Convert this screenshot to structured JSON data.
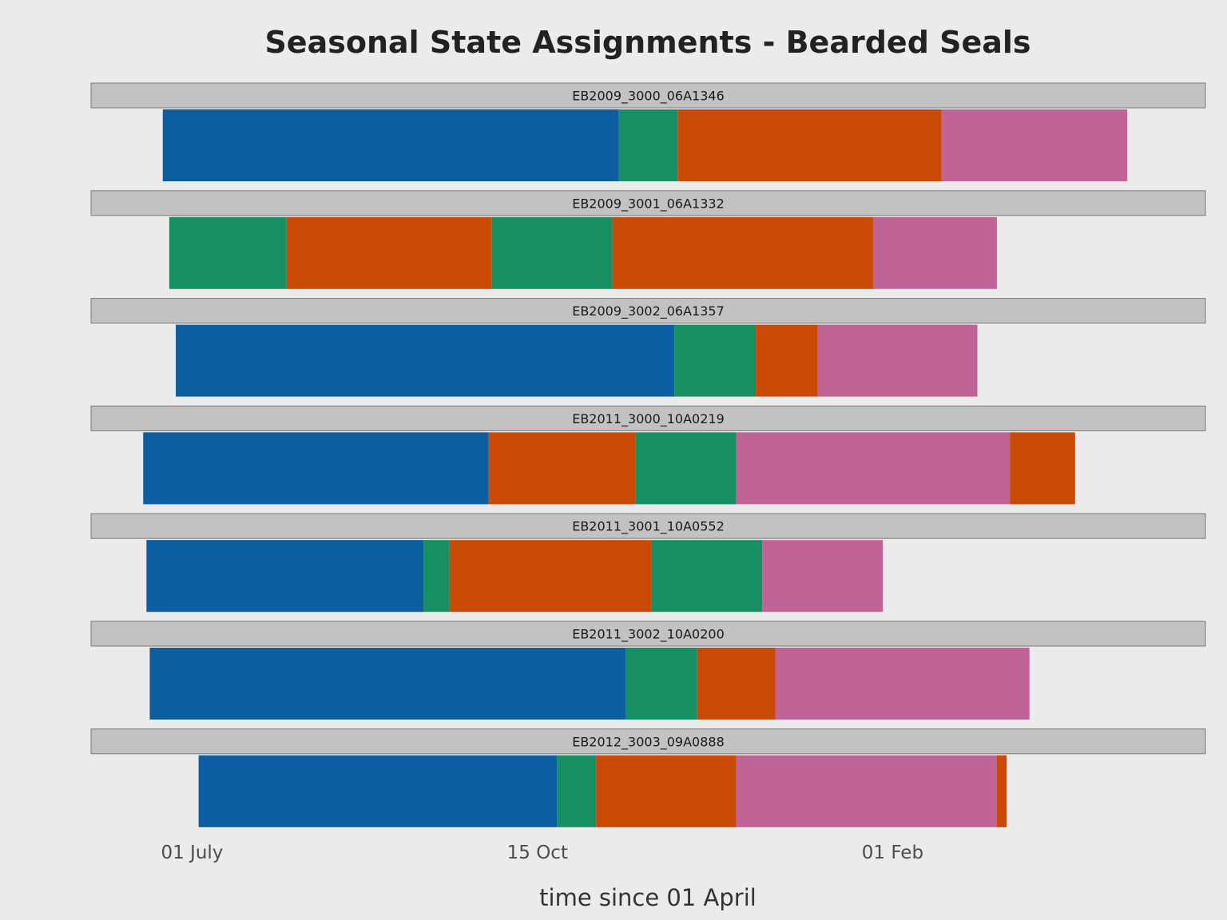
{
  "chart_data": {
    "type": "bar",
    "orientation": "horizontal-stacked-timeline",
    "title": "Seasonal State Assignments - Bearded Seals",
    "xlabel": "time since 01 April",
    "ylabel": "",
    "x_unit": "days since 01 April",
    "xlim": [
      60,
      402
    ],
    "x_ticks": [
      {
        "value": 91,
        "label": "01 July"
      },
      {
        "value": 197,
        "label": "15 Oct"
      },
      {
        "value": 306,
        "label": "01 Feb"
      }
    ],
    "grid": false,
    "legend": "none",
    "state_colors": {
      "blue": "#0b5ea2",
      "green": "#168f62",
      "orange": "#c94a04",
      "pink": "#c06397"
    },
    "panels": [
      {
        "id": "EB2009_3000_06A1346",
        "segments": [
          {
            "state": "blue",
            "start": 82,
            "end": 222
          },
          {
            "state": "green",
            "start": 222,
            "end": 240
          },
          {
            "state": "orange",
            "start": 240,
            "end": 321
          },
          {
            "state": "pink",
            "start": 321,
            "end": 378
          }
        ]
      },
      {
        "id": "EB2009_3001_06A1332",
        "segments": [
          {
            "state": "green",
            "start": 84,
            "end": 120
          },
          {
            "state": "orange",
            "start": 120,
            "end": 183
          },
          {
            "state": "green",
            "start": 183,
            "end": 220
          },
          {
            "state": "orange",
            "start": 220,
            "end": 300
          },
          {
            "state": "pink",
            "start": 300,
            "end": 338
          }
        ]
      },
      {
        "id": "EB2009_3002_06A1357",
        "segments": [
          {
            "state": "blue",
            "start": 86,
            "end": 239
          },
          {
            "state": "green",
            "start": 239,
            "end": 264
          },
          {
            "state": "orange",
            "start": 264,
            "end": 283
          },
          {
            "state": "pink",
            "start": 283,
            "end": 332
          }
        ]
      },
      {
        "id": "EB2011_3000_10A0219",
        "segments": [
          {
            "state": "blue",
            "start": 76,
            "end": 182
          },
          {
            "state": "orange",
            "start": 182,
            "end": 227
          },
          {
            "state": "green",
            "start": 227,
            "end": 258
          },
          {
            "state": "pink",
            "start": 258,
            "end": 342
          },
          {
            "state": "orange",
            "start": 342,
            "end": 362
          }
        ]
      },
      {
        "id": "EB2011_3001_10A0552",
        "segments": [
          {
            "state": "blue",
            "start": 77,
            "end": 162
          },
          {
            "state": "green",
            "start": 162,
            "end": 170
          },
          {
            "state": "orange",
            "start": 170,
            "end": 232
          },
          {
            "state": "green",
            "start": 232,
            "end": 266
          },
          {
            "state": "pink",
            "start": 266,
            "end": 303
          }
        ]
      },
      {
        "id": "EB2011_3002_10A0200",
        "segments": [
          {
            "state": "blue",
            "start": 78,
            "end": 224
          },
          {
            "state": "green",
            "start": 224,
            "end": 246
          },
          {
            "state": "orange",
            "start": 246,
            "end": 270
          },
          {
            "state": "pink",
            "start": 270,
            "end": 348
          }
        ]
      },
      {
        "id": "EB2012_3003_09A0888",
        "segments": [
          {
            "state": "blue",
            "start": 93,
            "end": 203
          },
          {
            "state": "green",
            "start": 203,
            "end": 215
          },
          {
            "state": "orange",
            "start": 215,
            "end": 258
          },
          {
            "state": "pink",
            "start": 258,
            "end": 338
          },
          {
            "state": "orange",
            "start": 338,
            "end": 341
          }
        ]
      }
    ]
  }
}
